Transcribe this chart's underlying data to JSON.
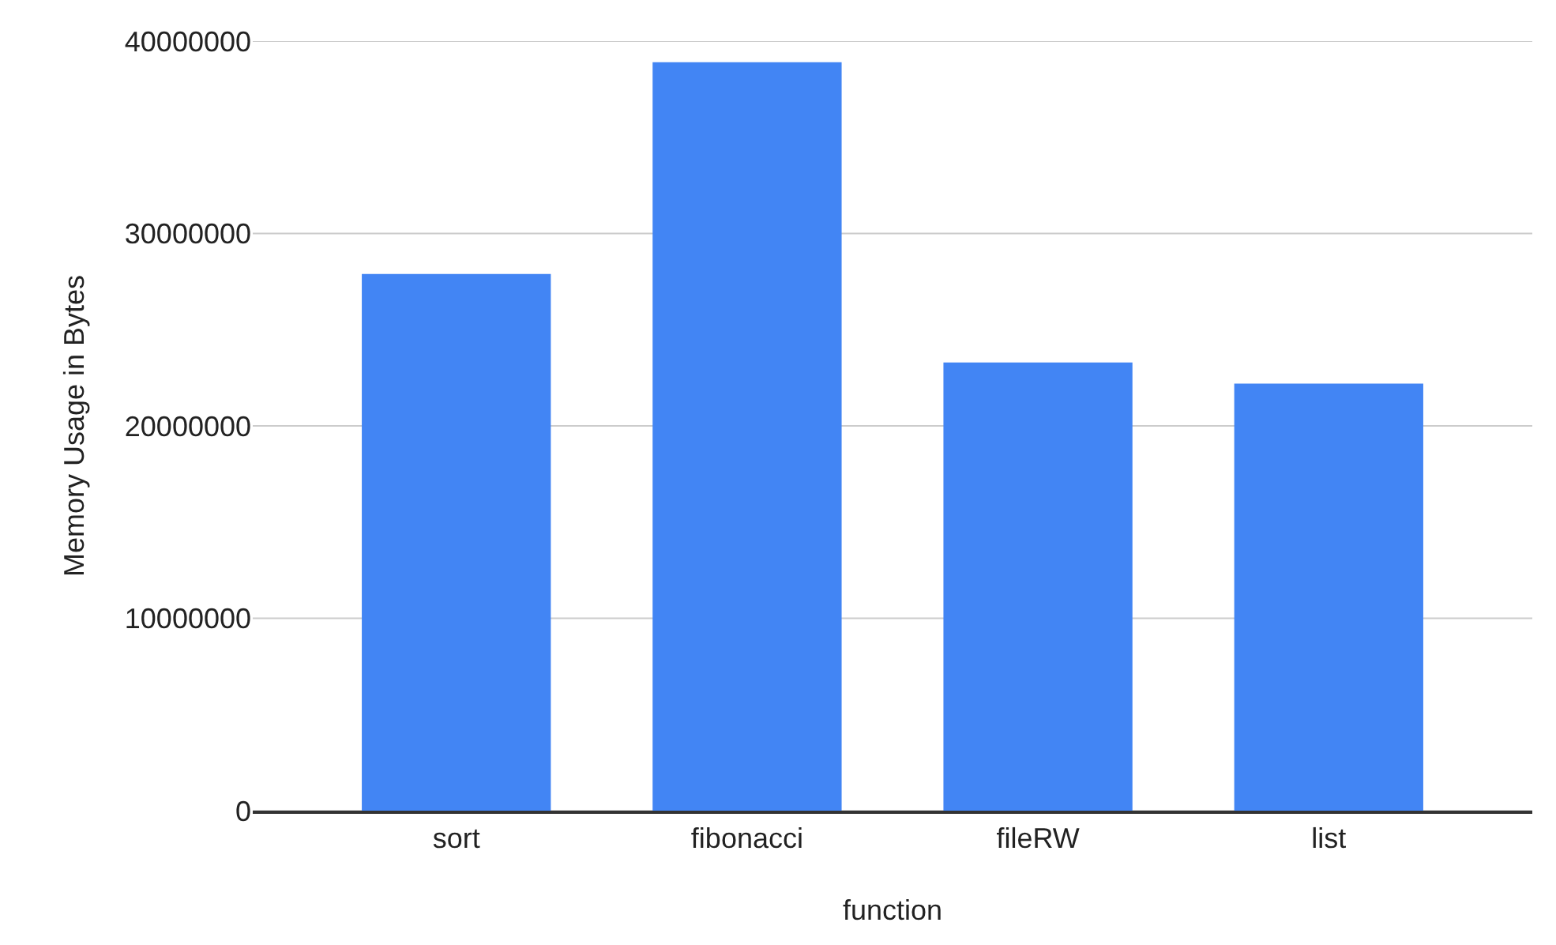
{
  "chart_data": {
    "type": "bar",
    "xlabel": "function",
    "ylabel": "Memory Usage in Bytes",
    "categories": [
      "sort",
      "fibonacci",
      "fileRW",
      "list"
    ],
    "values": [
      27900000,
      38900000,
      23300000,
      22200000
    ],
    "color": "#4285f4",
    "ylim": [
      0,
      40000000
    ],
    "yticks": [
      0,
      10000000,
      20000000,
      30000000,
      40000000
    ],
    "grid": "y"
  }
}
